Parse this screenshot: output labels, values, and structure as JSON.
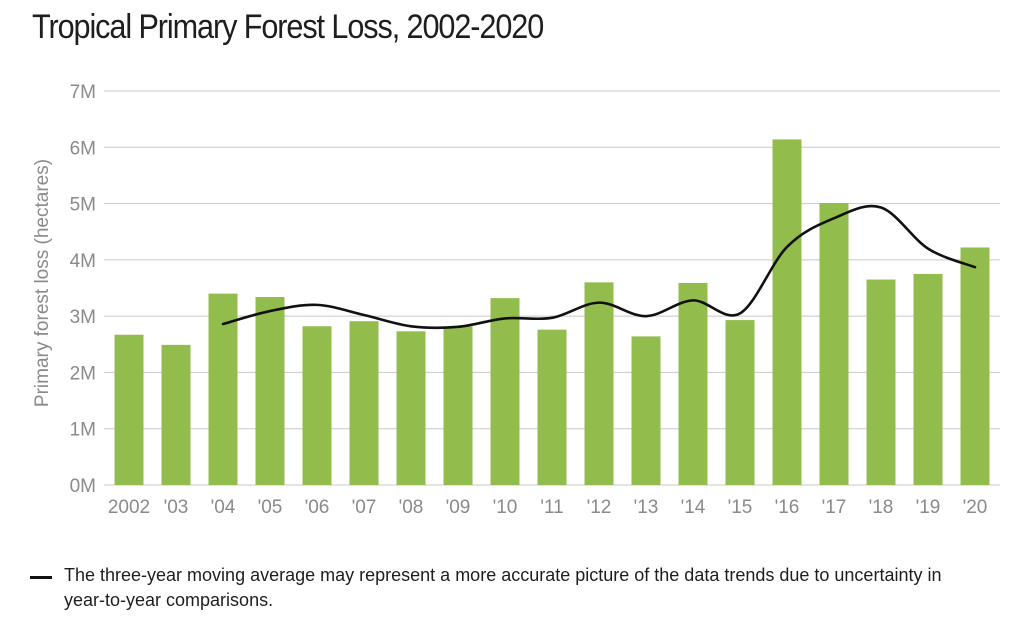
{
  "chart_data": {
    "type": "bar",
    "title": "Tropical Primary Forest Loss, 2002-2020",
    "ylabel": "Primary forest loss (hectares)",
    "xlabel": "",
    "categories": [
      "2002",
      "'03",
      "'04",
      "'05",
      "'06",
      "'07",
      "'08",
      "'09",
      "'10",
      "'11",
      "'12",
      "'13",
      "'14",
      "'15",
      "'16",
      "'17",
      "'18",
      "'19",
      "'20"
    ],
    "series": [
      {
        "type": "bar",
        "color": "#92bc4c",
        "values": [
          2.67,
          2.49,
          3.4,
          3.34,
          2.82,
          2.91,
          2.73,
          2.82,
          3.32,
          2.76,
          3.6,
          2.64,
          3.59,
          2.93,
          6.14,
          5.01,
          3.65,
          3.75,
          4.22
        ]
      },
      {
        "type": "line",
        "color": "#111111",
        "smooth": true,
        "values": [
          null,
          null,
          2.86,
          3.09,
          3.2,
          3.02,
          2.82,
          2.81,
          2.96,
          2.97,
          3.24,
          3.0,
          3.28,
          3.05,
          4.23,
          4.74,
          4.93,
          4.2,
          3.87
        ]
      }
    ],
    "yticks": [
      "0M",
      "1M",
      "2M",
      "3M",
      "4M",
      "5M",
      "6M",
      "7M"
    ],
    "ylim": [
      0,
      7
    ],
    "grid": true,
    "legend_position": "bottom",
    "legend": "The three-year moving average may represent a more accurate picture of the data trends due to uncertainty in year-to-year comparisons."
  }
}
